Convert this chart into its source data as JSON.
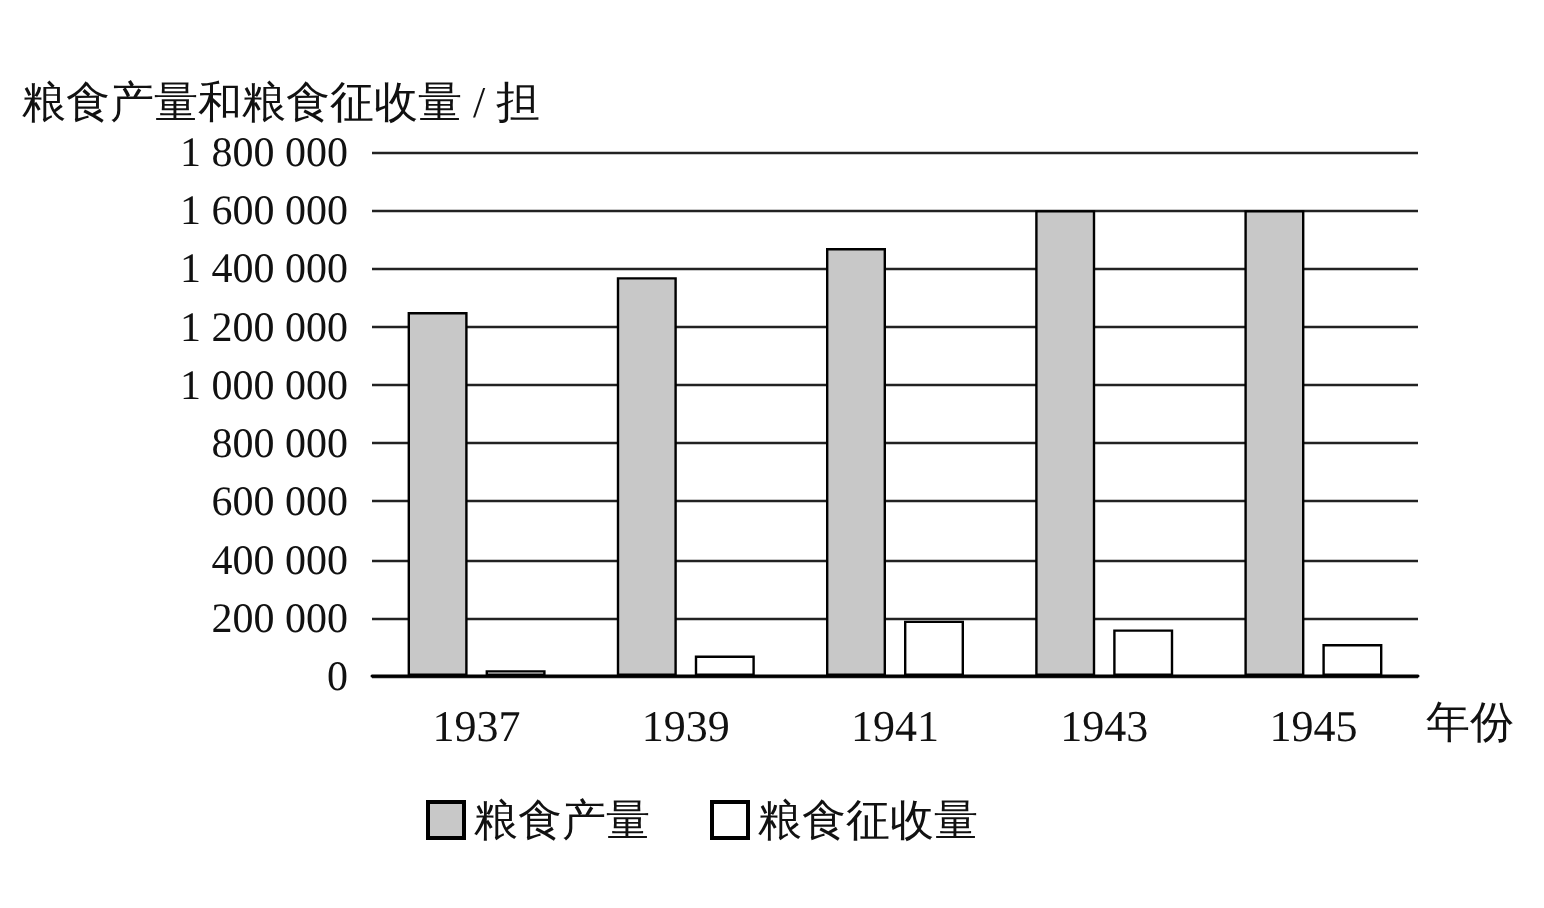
{
  "chart_data": {
    "type": "bar",
    "ylabel": "粮食产量和粮食征收量 / 担",
    "xlabel": "年份",
    "categories": [
      "1937",
      "1939",
      "1941",
      "1943",
      "1945"
    ],
    "series": [
      {
        "name": "粮食产量",
        "color": "#c8c8c8",
        "values": [
          1250000,
          1370000,
          1470000,
          1600000,
          1600000
        ]
      },
      {
        "name": "粮食征收量",
        "color": "#ffffff",
        "values": [
          20000,
          70000,
          190000,
          160000,
          110000
        ]
      }
    ],
    "ylim": [
      0,
      1800000
    ],
    "yticks": [
      {
        "value": 0,
        "label": "0"
      },
      {
        "value": 200000,
        "label": "200 000"
      },
      {
        "value": 400000,
        "label": "400 000"
      },
      {
        "value": 600000,
        "label": "600 000"
      },
      {
        "value": 800000,
        "label": "800 000"
      },
      {
        "value": 1000000,
        "label": "1 000 000"
      },
      {
        "value": 1200000,
        "label": "1 200 000"
      },
      {
        "value": 1400000,
        "label": "1 400 000"
      },
      {
        "value": 1600000,
        "label": "1 600 000"
      },
      {
        "value": 1800000,
        "label": "1 800 000"
      }
    ],
    "grid": "y",
    "legend": "bottom"
  }
}
